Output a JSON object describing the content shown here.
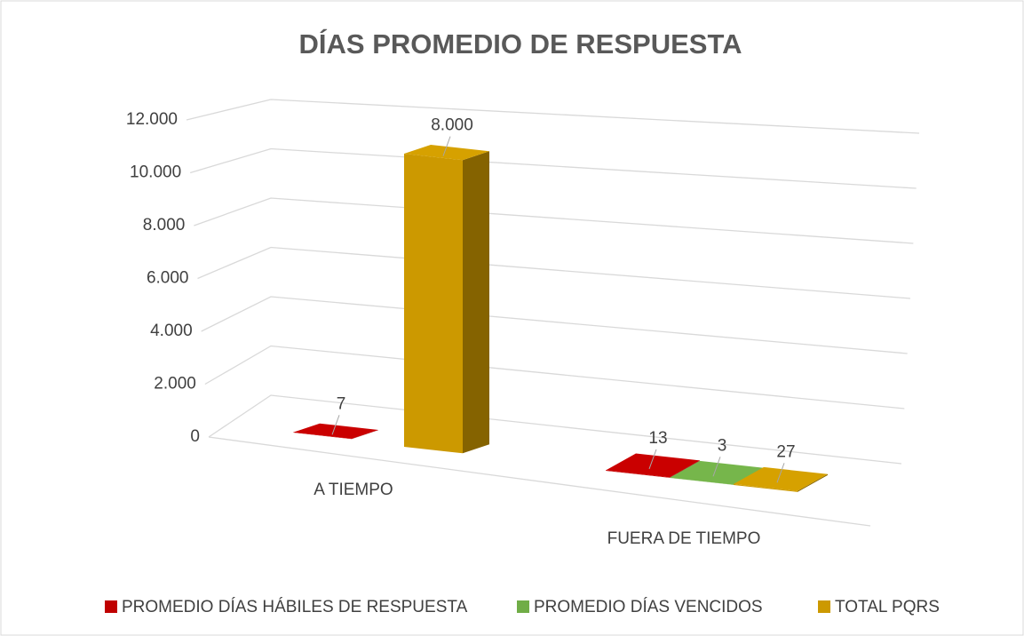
{
  "chart_data": {
    "type": "bar3d",
    "title": "DÍAS PROMEDIO DE RESPUESTA",
    "categories": [
      "A TIEMPO",
      "FUERA DE TIEMPO"
    ],
    "series": [
      {
        "name": "PROMEDIO DÍAS HÁBILES DE RESPUESTA",
        "color": "#c00000",
        "values": [
          7,
          13
        ]
      },
      {
        "name": "PROMEDIO DÍAS VENCIDOS",
        "color": "#70ad47",
        "values": [
          null,
          3
        ]
      },
      {
        "name": "TOTAL PQRS",
        "color": "#cc9900",
        "values": [
          8000,
          27
        ],
        "value_labels": [
          "8.000",
          "27"
        ]
      }
    ],
    "ylim": [
      0,
      12000
    ],
    "yticks": [
      0,
      {
        "value": 2000,
        "label": "2.000"
      },
      {
        "value": 4000,
        "label": "4.000"
      },
      {
        "value": 6000,
        "label": "6.000"
      },
      {
        "value": 8000,
        "label": "8.000"
      },
      {
        "value": 10000,
        "label": "10.000"
      },
      {
        "value": 12000,
        "label": "12.000"
      }
    ],
    "grid": true,
    "legend": "bottom"
  }
}
